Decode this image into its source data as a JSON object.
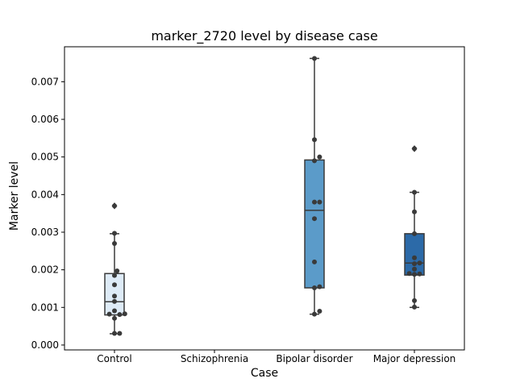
{
  "chart_data": {
    "type": "box",
    "title": "marker_2720 level by disease case",
    "xlabel": "Case",
    "ylabel": "Marker level",
    "categories": [
      "Control",
      "Schizophrenia",
      "Bipolar disorder",
      "Major depression"
    ],
    "y_ticks": [
      "0.000",
      "0.001",
      "0.002",
      "0.003",
      "0.004",
      "0.005",
      "0.006",
      "0.007"
    ],
    "ylim": [
      -0.00013,
      0.00793
    ],
    "grid": false,
    "colors": [
      "#deebf7",
      "#9ecae1",
      "#5b9bc9",
      "#2c6aa8"
    ],
    "box_stats": [
      {
        "category": "Control",
        "whisker_low": 0.0003,
        "q1": 0.0008,
        "median": 0.00115,
        "q3": 0.0019,
        "whisker_high": 0.00296,
        "outliers": [
          0.0037
        ]
      },
      {
        "category": "Schizophrenia",
        "empty": true
      },
      {
        "category": "Bipolar disorder",
        "whisker_low": 0.00082,
        "q1": 0.00152,
        "median": 0.00358,
        "q3": 0.00492,
        "whisker_high": 0.00762,
        "outliers": []
      },
      {
        "category": "Major depression",
        "whisker_low": 0.001,
        "q1": 0.00186,
        "median": 0.00218,
        "q3": 0.00296,
        "whisker_high": 0.00406,
        "outliers": [
          0.00522
        ]
      }
    ],
    "points": [
      {
        "category": "Control",
        "values": [
          0.00031,
          0.00031,
          0.00071,
          0.00081,
          0.00082,
          0.00083,
          0.00091,
          0.00116,
          0.0013,
          0.0016,
          0.00185,
          0.00197,
          0.0027,
          0.00297,
          0.0037
        ]
      },
      {
        "category": "Schizophrenia",
        "values": []
      },
      {
        "category": "Bipolar disorder",
        "values": [
          0.00082,
          0.0009,
          0.00152,
          0.00155,
          0.00221,
          0.00336,
          0.0038,
          0.0038,
          0.0049,
          0.005,
          0.00546,
          0.00762
        ]
      },
      {
        "category": "Major depression",
        "values": [
          0.00101,
          0.00118,
          0.00188,
          0.00189,
          0.0019,
          0.00202,
          0.00216,
          0.00218,
          0.00232,
          0.00296,
          0.00354,
          0.00406,
          0.00522
        ]
      }
    ]
  }
}
